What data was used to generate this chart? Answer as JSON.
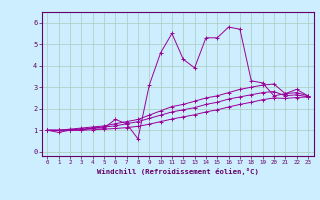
{
  "title": "",
  "xlabel": "Windchill (Refroidissement éolien,°C)",
  "ylabel": "",
  "xlim": [
    -0.5,
    23.5
  ],
  "ylim": [
    -0.2,
    6.5
  ],
  "xticks": [
    0,
    1,
    2,
    3,
    4,
    5,
    6,
    7,
    8,
    9,
    10,
    11,
    12,
    13,
    14,
    15,
    16,
    17,
    18,
    19,
    20,
    21,
    22,
    23
  ],
  "yticks": [
    0,
    1,
    2,
    3,
    4,
    5,
    6
  ],
  "bg_color": "#cceeff",
  "grid_color": "#aaccbb",
  "line_color": "#990099",
  "line1_x": [
    0,
    1,
    2,
    3,
    4,
    5,
    6,
    7,
    8,
    9,
    10,
    11,
    12,
    13,
    14,
    15,
    16,
    17,
    18,
    19,
    20,
    21,
    22,
    23
  ],
  "line1_y": [
    1.0,
    0.9,
    1.0,
    1.0,
    1.1,
    1.1,
    1.5,
    1.3,
    0.6,
    3.1,
    4.6,
    5.5,
    4.3,
    3.9,
    5.3,
    5.3,
    5.8,
    5.7,
    3.3,
    3.2,
    2.6,
    2.7,
    2.9,
    2.6
  ],
  "line2_x": [
    0,
    1,
    2,
    3,
    4,
    5,
    6,
    7,
    8,
    9,
    10,
    11,
    12,
    13,
    14,
    15,
    16,
    17,
    18,
    19,
    20,
    21,
    22,
    23
  ],
  "line2_y": [
    1.0,
    1.0,
    1.05,
    1.1,
    1.15,
    1.2,
    1.3,
    1.4,
    1.5,
    1.7,
    1.9,
    2.1,
    2.2,
    2.35,
    2.5,
    2.6,
    2.75,
    2.9,
    3.0,
    3.1,
    3.15,
    2.7,
    2.75,
    2.6
  ],
  "line3_x": [
    0,
    1,
    2,
    3,
    4,
    5,
    6,
    7,
    8,
    9,
    10,
    11,
    12,
    13,
    14,
    15,
    16,
    17,
    18,
    19,
    20,
    21,
    22,
    23
  ],
  "line3_y": [
    1.0,
    1.0,
    1.02,
    1.05,
    1.1,
    1.15,
    1.2,
    1.3,
    1.4,
    1.55,
    1.7,
    1.85,
    1.95,
    2.05,
    2.2,
    2.3,
    2.45,
    2.55,
    2.65,
    2.75,
    2.8,
    2.6,
    2.65,
    2.55
  ],
  "line4_x": [
    0,
    1,
    2,
    3,
    4,
    5,
    6,
    7,
    8,
    9,
    10,
    11,
    12,
    13,
    14,
    15,
    16,
    17,
    18,
    19,
    20,
    21,
    22,
    23
  ],
  "line4_y": [
    1.0,
    1.0,
    1.0,
    1.0,
    1.02,
    1.05,
    1.08,
    1.12,
    1.18,
    1.28,
    1.4,
    1.52,
    1.62,
    1.72,
    1.85,
    1.95,
    2.08,
    2.2,
    2.3,
    2.42,
    2.5,
    2.48,
    2.52,
    2.55
  ]
}
